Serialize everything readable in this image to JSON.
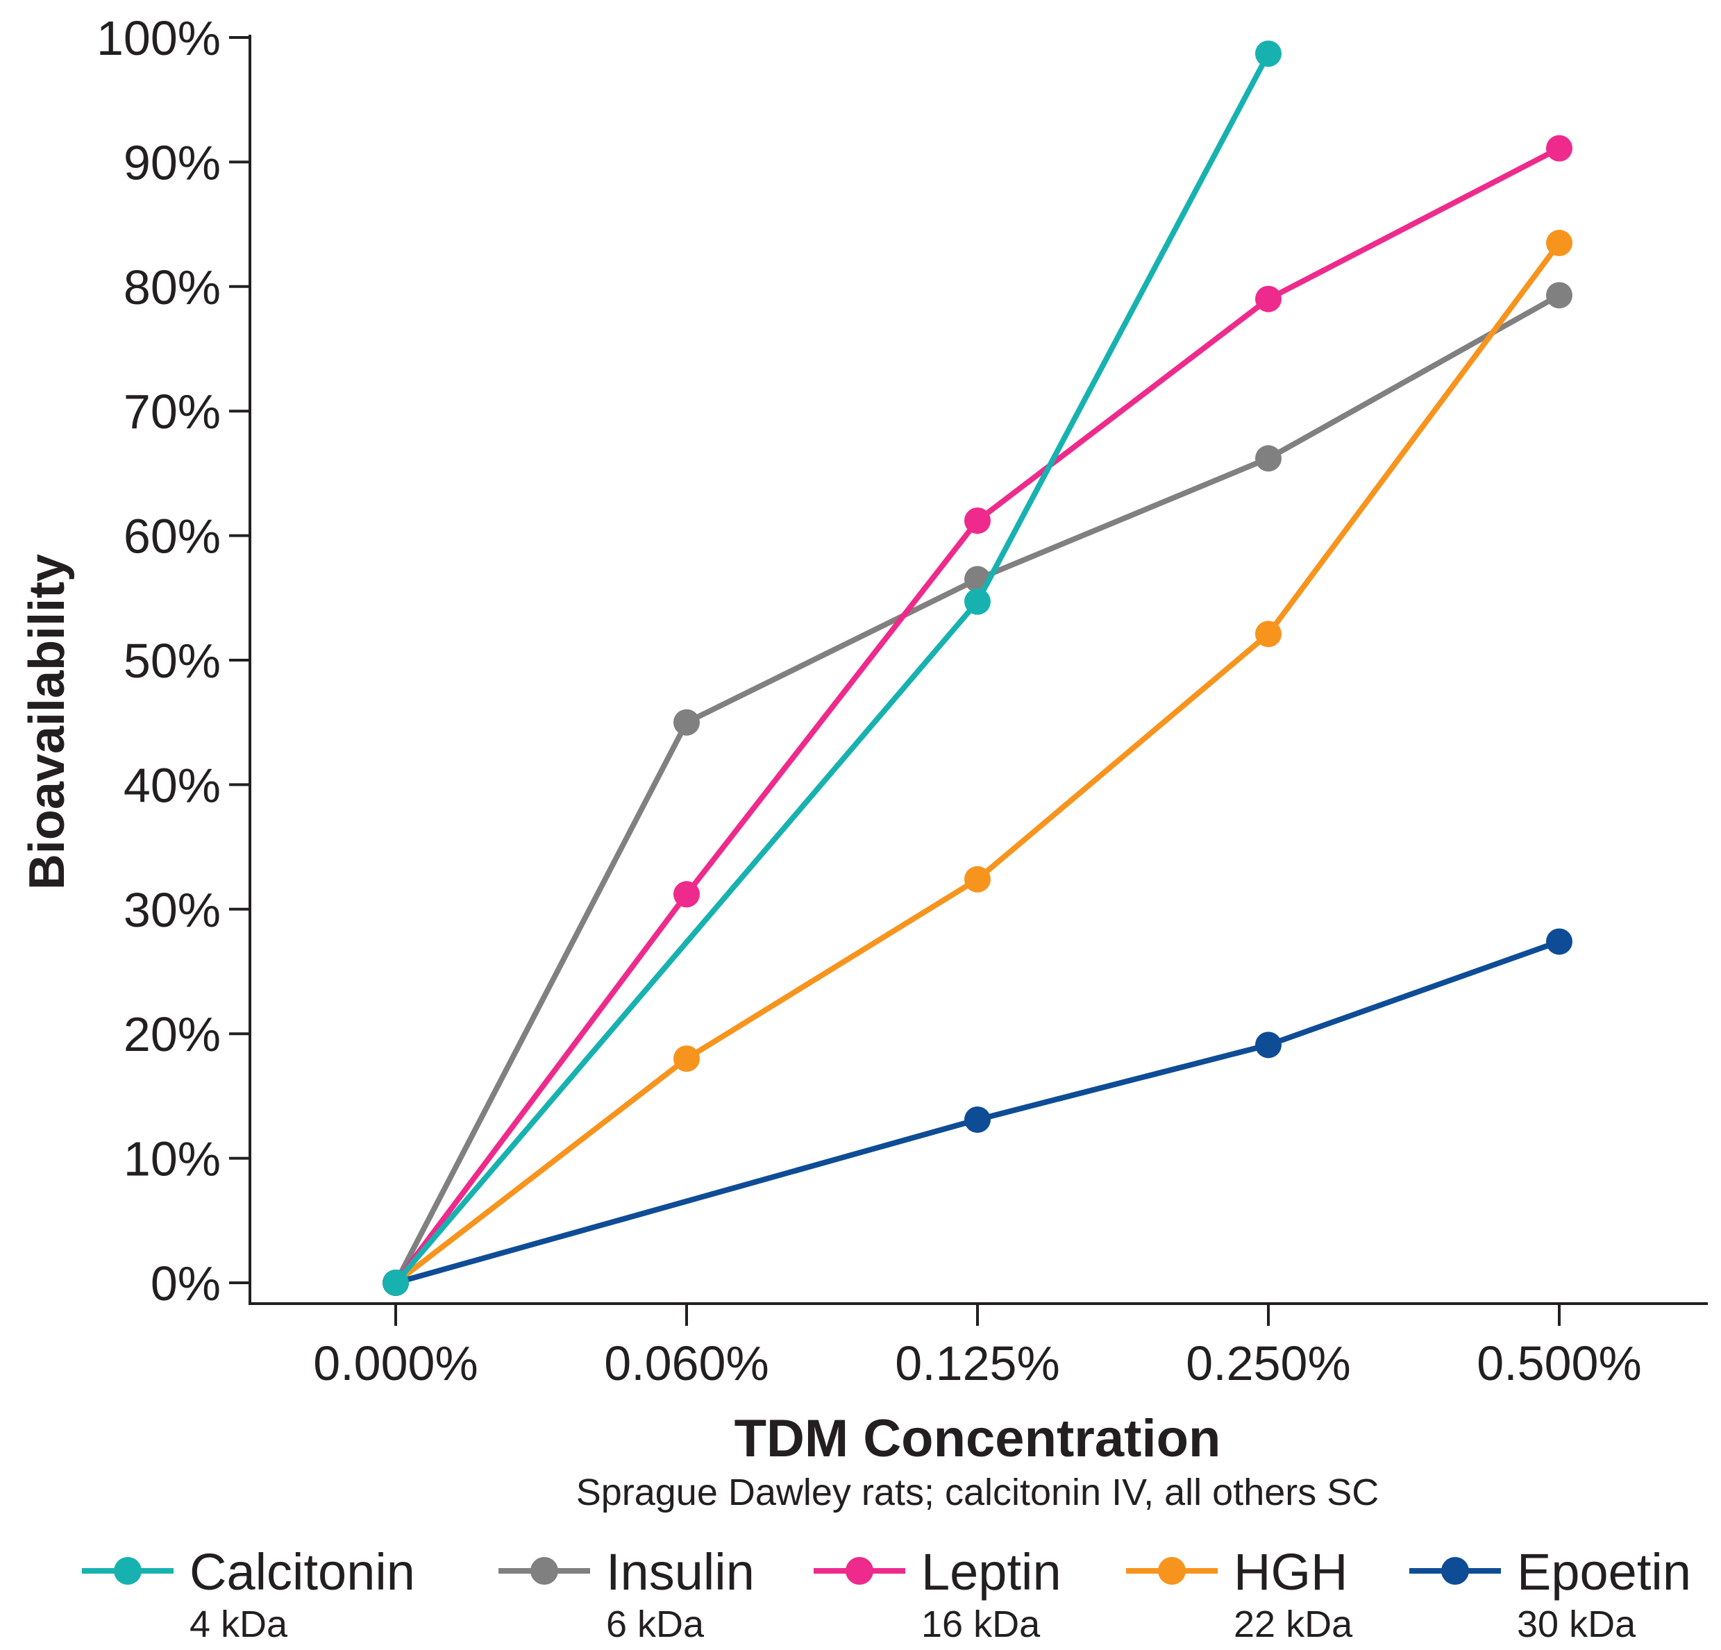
{
  "chart_data": {
    "type": "line",
    "title": "",
    "xlabel": "TDM Concentration",
    "subtitle": "Sprague Dawley rats; calcitonin IV, all others SC",
    "ylabel": "Bioavailability",
    "categories": [
      "0.000%",
      "0.060%",
      "0.125%",
      "0.250%",
      "0.500%"
    ],
    "yticks": [
      "0%",
      "10%",
      "20%",
      "30%",
      "40%",
      "50%",
      "60%",
      "70%",
      "80%",
      "90%",
      "100%"
    ],
    "ylim": [
      0,
      100
    ],
    "grid": false,
    "legend_position": "bottom",
    "series": [
      {
        "name": "Calcitonin",
        "sublabel": "4 kDa",
        "color": "#17b2b0",
        "values": [
          0,
          null,
          54.7,
          98.7,
          null
        ]
      },
      {
        "name": "Insulin",
        "sublabel": "6 kDa",
        "color": "#808080",
        "values": [
          0,
          45.0,
          56.5,
          66.2,
          79.3
        ]
      },
      {
        "name": "Leptin",
        "sublabel": "16 kDa",
        "color": "#ee2a8c",
        "values": [
          0,
          31.2,
          61.2,
          79.0,
          91.1
        ]
      },
      {
        "name": "HGH",
        "sublabel": "22 kDa",
        "color": "#f7941d",
        "values": [
          0,
          18.0,
          32.4,
          52.1,
          83.5
        ]
      },
      {
        "name": "Epoetin",
        "sublabel": "30 kDa",
        "color": "#0e4c96",
        "values": [
          0,
          null,
          13.1,
          19.1,
          27.4
        ]
      }
    ]
  }
}
